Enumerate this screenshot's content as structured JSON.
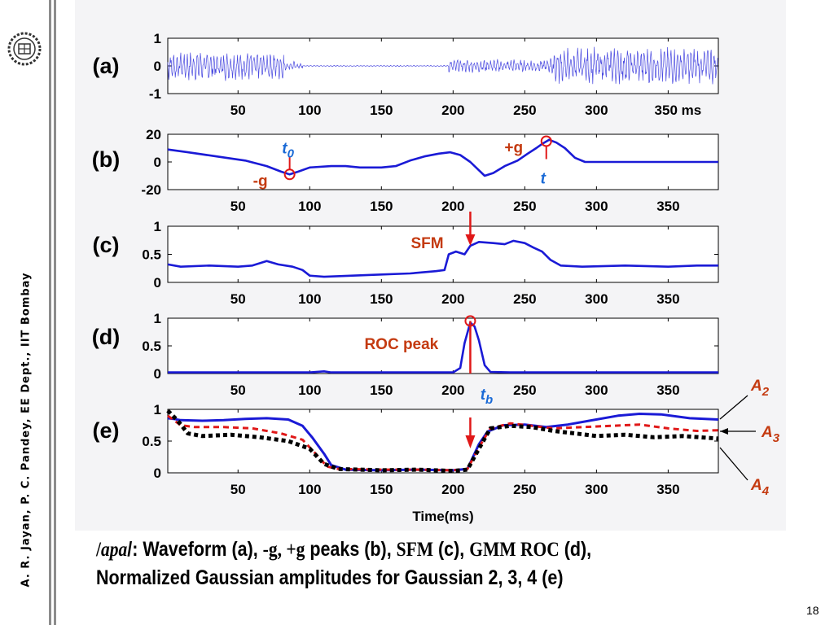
{
  "sidebar": {
    "vertical_text": "A. R. Jayan, P. C. Pandey, EE Dept.,  IIT Bombay",
    "logo_icon": "iit-bombay-emblem-icon"
  },
  "caption": {
    "line1_pre": "/",
    "line1_word": "apa",
    "line1_mid": "/: Waveform (a), ",
    "line1_g1": "-g, +g",
    "line1_mid2": " peaks (b), ",
    "line1_sfm": "SFM",
    "line1_mid3": " (c), ",
    "line1_gmm": "GMM ROC",
    "line1_end": " (d),",
    "line2": "Normalized Gaussian amplitudes for Gaussian 2, 3, 4 (e)"
  },
  "slide_number": "18",
  "colors": {
    "blue": "#1a1ad6",
    "red": "#e01818",
    "black": "#000000",
    "annotation_red": "#c43a10",
    "annotation_blue": "#1a6ad6"
  },
  "chart_data": [
    {
      "id": "a",
      "panel_label": "(a)",
      "type": "line",
      "xlim": [
        1,
        385
      ],
      "ylim": [
        -1,
        1
      ],
      "yticks": [
        "1",
        "0",
        "-1"
      ],
      "ytick_values": [
        1,
        0,
        -1
      ],
      "xticks": [
        "50",
        "100",
        "150",
        "200",
        "250",
        "300",
        "350 ms"
      ],
      "xtick_values": [
        50,
        100,
        150,
        200,
        250,
        300,
        350
      ],
      "series": [
        {
          "style": "waveform",
          "color": "#4a4ae0",
          "segments": [
            {
              "x0": 1,
              "x1": 82,
              "amp": 0.55
            },
            {
              "x0": 82,
              "x1": 95,
              "amp": 0.18
            },
            {
              "x0": 95,
              "x1": 197,
              "amp": 0.02
            },
            {
              "x0": 197,
              "x1": 268,
              "amp": 0.25
            },
            {
              "x0": 268,
              "x1": 385,
              "amp": 0.7
            }
          ]
        }
      ]
    },
    {
      "id": "b",
      "panel_label": "(b)",
      "type": "line",
      "xlim": [
        1,
        385
      ],
      "ylim": [
        -20,
        20
      ],
      "yticks": [
        "20",
        "0",
        "-20"
      ],
      "ytick_values": [
        20,
        0,
        -20
      ],
      "xticks": [
        "50",
        "100",
        "150",
        "200",
        "250",
        "300",
        "350"
      ],
      "xtick_values": [
        50,
        100,
        150,
        200,
        250,
        300,
        350
      ],
      "series": [
        {
          "color": "#1a1ad6",
          "points": [
            [
              1,
              9
            ],
            [
              15,
              7
            ],
            [
              35,
              4
            ],
            [
              55,
              1
            ],
            [
              70,
              -3
            ],
            [
              80,
              -7
            ],
            [
              86,
              -9
            ],
            [
              92,
              -7
            ],
            [
              100,
              -4
            ],
            [
              115,
              -3
            ],
            [
              125,
              -3
            ],
            [
              135,
              -4
            ],
            [
              150,
              -4
            ],
            [
              160,
              -3
            ],
            [
              170,
              1
            ],
            [
              180,
              4
            ],
            [
              190,
              6
            ],
            [
              198,
              7
            ],
            [
              205,
              5
            ],
            [
              212,
              0
            ],
            [
              218,
              -6
            ],
            [
              222,
              -10
            ],
            [
              228,
              -8
            ],
            [
              236,
              -3
            ],
            [
              245,
              1
            ],
            [
              252,
              6
            ],
            [
              258,
              10
            ],
            [
              262,
              13
            ],
            [
              267,
              16
            ],
            [
              272,
              14
            ],
            [
              278,
              10
            ],
            [
              285,
              3
            ],
            [
              292,
              0
            ],
            [
              305,
              0
            ],
            [
              330,
              0
            ],
            [
              360,
              0
            ],
            [
              385,
              0
            ]
          ]
        }
      ],
      "markers": [
        {
          "x": 86,
          "y": -9,
          "label": "-g",
          "sub": "t0"
        },
        {
          "x": 265,
          "y": 15,
          "label": "+g",
          "sub": "t"
        }
      ]
    },
    {
      "id": "c",
      "panel_label": "(c)",
      "type": "line",
      "xlim": [
        1,
        385
      ],
      "ylim": [
        0,
        1
      ],
      "yticks": [
        "1",
        "0.5",
        "0"
      ],
      "ytick_values": [
        1,
        0.5,
        0
      ],
      "xticks": [
        "50",
        "100",
        "150",
        "200",
        "250",
        "300",
        "350"
      ],
      "xtick_values": [
        50,
        100,
        150,
        200,
        250,
        300,
        350
      ],
      "series": [
        {
          "color": "#1a1ad6",
          "points": [
            [
              1,
              0.32
            ],
            [
              10,
              0.28
            ],
            [
              30,
              0.3
            ],
            [
              50,
              0.28
            ],
            [
              60,
              0.3
            ],
            [
              70,
              0.38
            ],
            [
              78,
              0.32
            ],
            [
              88,
              0.28
            ],
            [
              95,
              0.22
            ],
            [
              100,
              0.12
            ],
            [
              110,
              0.1
            ],
            [
              130,
              0.12
            ],
            [
              150,
              0.14
            ],
            [
              170,
              0.16
            ],
            [
              188,
              0.2
            ],
            [
              194,
              0.22
            ],
            [
              197,
              0.5
            ],
            [
              202,
              0.55
            ],
            [
              208,
              0.5
            ],
            [
              212,
              0.65
            ],
            [
              218,
              0.72
            ],
            [
              228,
              0.7
            ],
            [
              236,
              0.68
            ],
            [
              242,
              0.74
            ],
            [
              250,
              0.7
            ],
            [
              256,
              0.62
            ],
            [
              262,
              0.55
            ],
            [
              268,
              0.4
            ],
            [
              275,
              0.3
            ],
            [
              290,
              0.28
            ],
            [
              320,
              0.3
            ],
            [
              350,
              0.28
            ],
            [
              370,
              0.3
            ],
            [
              385,
              0.3
            ]
          ]
        }
      ],
      "annotation": {
        "x": 212,
        "text": "SFM"
      }
    },
    {
      "id": "d",
      "panel_label": "(d)",
      "type": "line",
      "xlim": [
        1,
        385
      ],
      "ylim": [
        0,
        1
      ],
      "yticks": [
        "1",
        "0.5",
        "0"
      ],
      "ytick_values": [
        1,
        0.5,
        0
      ],
      "xticks": [
        "50",
        "100",
        "150",
        "200",
        "250",
        "300",
        "350"
      ],
      "xtick_values": [
        50,
        100,
        150,
        200,
        250,
        300,
        350
      ],
      "series": [
        {
          "color": "#1a1ad6",
          "points": [
            [
              1,
              0.02
            ],
            [
              100,
              0.02
            ],
            [
              110,
              0.04
            ],
            [
              115,
              0.02
            ],
            [
              200,
              0.02
            ],
            [
              205,
              0.1
            ],
            [
              208,
              0.55
            ],
            [
              212,
              0.92
            ],
            [
              215,
              0.85
            ],
            [
              218,
              0.6
            ],
            [
              222,
              0.15
            ],
            [
              226,
              0.03
            ],
            [
              240,
              0.02
            ],
            [
              385,
              0.02
            ]
          ]
        }
      ],
      "annotation": {
        "x": 212,
        "text": "ROC peak",
        "sub": "tb"
      }
    },
    {
      "id": "e",
      "panel_label": "(e)",
      "type": "line",
      "xlim": [
        1,
        385
      ],
      "ylim": [
        0,
        1
      ],
      "yticks": [
        "1",
        "0.5",
        "0"
      ],
      "ytick_values": [
        1,
        0.5,
        0
      ],
      "xticks": [
        "50",
        "100",
        "150",
        "200",
        "250",
        "300",
        "350"
      ],
      "xtick_values": [
        50,
        100,
        150,
        200,
        250,
        300,
        350
      ],
      "xlabel": "Time(ms)",
      "series": [
        {
          "name": "A2",
          "color": "#1a1ad6",
          "dash": "none",
          "width": 3,
          "points": [
            [
              1,
              0.86
            ],
            [
              5,
              0.85
            ],
            [
              10,
              0.83
            ],
            [
              25,
              0.82
            ],
            [
              40,
              0.83
            ],
            [
              55,
              0.85
            ],
            [
              70,
              0.86
            ],
            [
              85,
              0.84
            ],
            [
              95,
              0.74
            ],
            [
              102,
              0.55
            ],
            [
              110,
              0.3
            ],
            [
              115,
              0.12
            ],
            [
              125,
              0.05
            ],
            [
              150,
              0.04
            ],
            [
              175,
              0.05
            ],
            [
              200,
              0.04
            ],
            [
              210,
              0.06
            ],
            [
              218,
              0.45
            ],
            [
              224,
              0.65
            ],
            [
              235,
              0.75
            ],
            [
              250,
              0.76
            ],
            [
              265,
              0.72
            ],
            [
              280,
              0.76
            ],
            [
              295,
              0.82
            ],
            [
              315,
              0.9
            ],
            [
              330,
              0.93
            ],
            [
              345,
              0.92
            ],
            [
              365,
              0.86
            ],
            [
              385,
              0.84
            ]
          ]
        },
        {
          "name": "A3",
          "color": "#e01818",
          "dash": "7 5",
          "width": 3,
          "points": [
            [
              1,
              0.9
            ],
            [
              10,
              0.75
            ],
            [
              20,
              0.72
            ],
            [
              40,
              0.72
            ],
            [
              60,
              0.7
            ],
            [
              80,
              0.62
            ],
            [
              95,
              0.52
            ],
            [
              105,
              0.28
            ],
            [
              112,
              0.1
            ],
            [
              120,
              0.06
            ],
            [
              150,
              0.05
            ],
            [
              175,
              0.05
            ],
            [
              200,
              0.04
            ],
            [
              210,
              0.06
            ],
            [
              218,
              0.4
            ],
            [
              226,
              0.7
            ],
            [
              240,
              0.78
            ],
            [
              255,
              0.74
            ],
            [
              270,
              0.7
            ],
            [
              290,
              0.72
            ],
            [
              310,
              0.74
            ],
            [
              330,
              0.76
            ],
            [
              350,
              0.7
            ],
            [
              370,
              0.66
            ],
            [
              385,
              0.67
            ]
          ]
        },
        {
          "name": "A4",
          "color": "#000000",
          "dash": "5 4",
          "width": 5,
          "points": [
            [
              1,
              0.98
            ],
            [
              8,
              0.82
            ],
            [
              15,
              0.62
            ],
            [
              25,
              0.58
            ],
            [
              45,
              0.6
            ],
            [
              65,
              0.56
            ],
            [
              85,
              0.5
            ],
            [
              100,
              0.38
            ],
            [
              110,
              0.14
            ],
            [
              120,
              0.06
            ],
            [
              150,
              0.04
            ],
            [
              175,
              0.05
            ],
            [
              200,
              0.03
            ],
            [
              210,
              0.05
            ],
            [
              218,
              0.38
            ],
            [
              226,
              0.7
            ],
            [
              240,
              0.74
            ],
            [
              255,
              0.72
            ],
            [
              270,
              0.66
            ],
            [
              285,
              0.62
            ],
            [
              300,
              0.58
            ],
            [
              320,
              0.6
            ],
            [
              340,
              0.56
            ],
            [
              360,
              0.58
            ],
            [
              385,
              0.54
            ]
          ]
        }
      ],
      "annotation": {
        "x": 212
      }
    }
  ]
}
